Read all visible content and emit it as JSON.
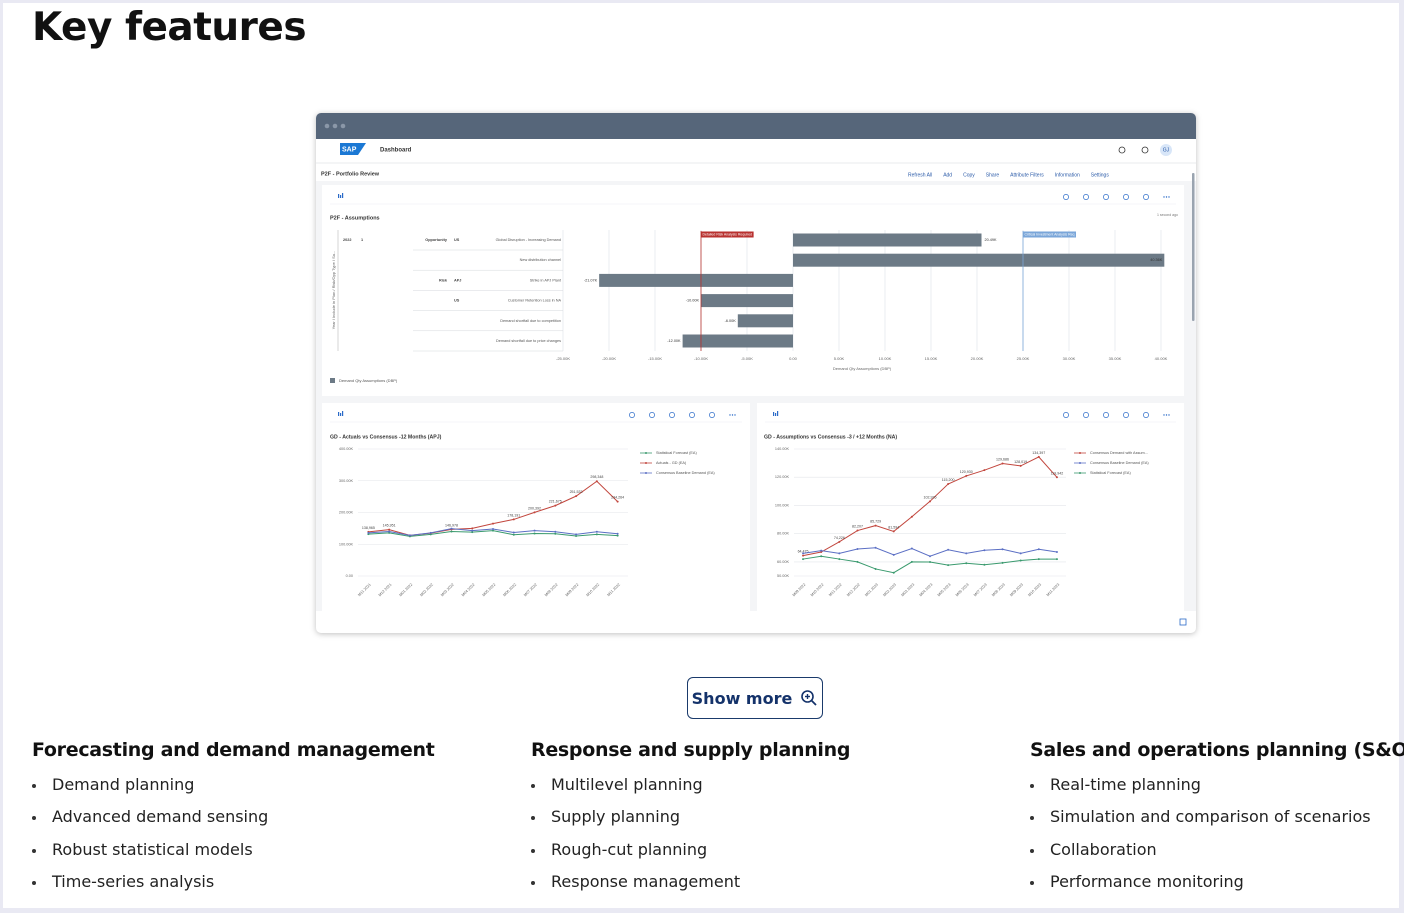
{
  "title": "Key features",
  "dashboard": {
    "app": "Dashboard",
    "logo": "SAP",
    "user": "GJ",
    "page_title": "P2F - Portfolio Review",
    "actions": [
      "Refresh All",
      "Add",
      "Copy",
      "Share",
      "Attribute Filters",
      "Information",
      "Settings"
    ],
    "updated": "1 second ago"
  },
  "chart_data": [
    {
      "type": "hbar",
      "title": "P2F - Assumptions",
      "y_axis_title": "Year / Include in Plan / Risk/Opp Type / Sa...",
      "x_axis_title": "Demand Qty Assumptions (DBP)",
      "row_headers": [
        [
          "2022",
          "1",
          "Opportunity",
          "US"
        ],
        [
          null,
          null,
          null,
          null
        ],
        [
          null,
          null,
          "Risk",
          "APJ"
        ],
        [
          null,
          null,
          null,
          "US"
        ],
        [
          null,
          null,
          null,
          null
        ],
        [
          null,
          null,
          null,
          null
        ]
      ],
      "categories": [
        "Global Disruption - Increasing Demand",
        "New distribution channel",
        "Strike in APJ Plant",
        "Customer Retention Loss in NA",
        "Demand shortfall due to competition",
        "Demand shortfall due to price changes"
      ],
      "series": [
        {
          "name": "Demand Qty Assumptions (DBP)",
          "color": "#6c7a86",
          "values": [
            20490,
            40360,
            -21070,
            -10000,
            -6000,
            -12000
          ],
          "value_labels": [
            "20.49K",
            "40.36K",
            "-21.07K",
            "-10.00K",
            "-6.00K",
            "-12.00K"
          ]
        }
      ],
      "xlim": [
        -25000,
        40000
      ],
      "xticks": [
        {
          "value": -25000,
          "label": "-25.00K"
        },
        {
          "value": -20000,
          "label": "-20.00K"
        },
        {
          "value": -15000,
          "label": "-15.00K"
        },
        {
          "value": -10000,
          "label": "-10.00K"
        },
        {
          "value": -5000,
          "label": "-5.00K"
        },
        {
          "value": 0,
          "label": "0.00"
        },
        {
          "value": 5000,
          "label": "5.00K"
        },
        {
          "value": 10000,
          "label": "10.00K"
        },
        {
          "value": 15000,
          "label": "15.00K"
        },
        {
          "value": 20000,
          "label": "20.00K"
        },
        {
          "value": 25000,
          "label": "25.00K"
        },
        {
          "value": 30000,
          "label": "30.00K"
        },
        {
          "value": 35000,
          "label": "35.00K"
        },
        {
          "value": 40000,
          "label": "40.00K"
        }
      ],
      "annotations": [
        {
          "text": "Detailed Risk Analysis Required",
          "x": -10000,
          "color": "#b8312f"
        },
        {
          "text": "Critical Investment Analysis Req",
          "x": 25000,
          "color": "#7aa6d9"
        }
      ],
      "grid": true
    },
    {
      "type": "line",
      "title": "GD - Actuals vs Consensus -12 Months (APJ)",
      "categories": [
        "M11 2021",
        "M12 2021",
        "M01 2022",
        "M02 2022",
        "M03 2022",
        "M04 2022",
        "M05 2022",
        "M06 2022",
        "M07 2022",
        "M08 2022",
        "M09 2022",
        "M10 2022",
        "M11 2022"
      ],
      "series": [
        {
          "name": "Statistical Forecast (EA)",
          "color": "#3a9a6e",
          "values": [
            132000,
            136000,
            125000,
            131000,
            140000,
            138000,
            143000,
            130000,
            134000,
            133000,
            126000,
            131000,
            127000
          ]
        },
        {
          "name": "Actuals - GD (EA)",
          "color": "#c2463d",
          "values": [
            138965,
            145951,
            128000,
            135000,
            146978,
            150000,
            165000,
            178191,
            200392,
            221675,
            251533,
            298348,
            234264
          ],
          "value_labels": [
            "138,965",
            "145,951",
            null,
            null,
            "146,978",
            null,
            null,
            "178,191",
            "200,392",
            "221,675",
            "251,533",
            "298,348",
            "234,264"
          ]
        },
        {
          "name": "Consensus Baseline Demand (EA)",
          "color": "#5b6fc4",
          "values": [
            136000,
            140000,
            128000,
            136000,
            149190,
            143000,
            148000,
            137000,
            142719,
            139413,
            131000,
            139407,
            133000
          ]
        }
      ],
      "ylim": [
        0,
        400000
      ],
      "yticks": [
        {
          "value": 0,
          "label": "0.00"
        },
        {
          "value": 100000,
          "label": "100.00K"
        },
        {
          "value": 200000,
          "label": "200.00K"
        },
        {
          "value": 300000,
          "label": "300.00K"
        },
        {
          "value": 400000,
          "label": "400.00K"
        }
      ],
      "grid": true
    },
    {
      "type": "line",
      "title": "GD - Assumptions vs Consensus -3 / +12 Months (NA)",
      "categories": [
        "M09 2022",
        "M10 2022",
        "M11 2022",
        "M12 2022",
        "M01 2023",
        "M02 2023",
        "M03 2023",
        "M04 2023",
        "M05 2023",
        "M06 2023",
        "M07 2023",
        "M08 2023",
        "M09 2023",
        "M10 2023",
        "M11 2023"
      ],
      "series": [
        {
          "name": "Consensus Demand with Assum...",
          "color": "#c2463d",
          "values": [
            64475,
            67000,
            74226,
            82207,
            85729,
            81594,
            92000,
            102926,
            115200,
            120930,
            125000,
            129686,
            128019,
            134397,
            119942
          ],
          "value_labels": [
            "64,475",
            null,
            "74,226",
            "82,207",
            "85,729",
            "81,594",
            null,
            "102,926",
            "115,200",
            "120,930",
            null,
            "129,686",
            "128,019",
            "134,397",
            "119,942"
          ]
        },
        {
          "name": "Consensus Baseline Demand (EA)",
          "color": "#5b6fc4",
          "values": [
            66000,
            68000,
            66000,
            69135,
            70000,
            65000,
            69495,
            64000,
            68608,
            66000,
            68217,
            68984,
            66000,
            68923,
            67000
          ]
        },
        {
          "name": "Statistical Forecast (EA)",
          "color": "#3a9a6e",
          "values": [
            62000,
            64000,
            62000,
            60000,
            55000,
            52322,
            60000,
            59936,
            57675,
            59000,
            58000,
            59294,
            61000,
            62000,
            62000
          ]
        }
      ],
      "ylim": [
        50000,
        140000
      ],
      "yticks": [
        {
          "value": 50000,
          "label": "50.00K"
        },
        {
          "value": 60000,
          "label": "60.00K"
        },
        {
          "value": 80000,
          "label": "80.00K"
        },
        {
          "value": 100000,
          "label": "100.00K"
        },
        {
          "value": 120000,
          "label": "120.00K"
        },
        {
          "value": 140000,
          "label": "140.00K"
        }
      ],
      "grid": true
    }
  ],
  "show_more": "Show more",
  "columns": [
    {
      "title": "Forecasting and demand management",
      "items": [
        "Demand planning",
        "Advanced demand sensing",
        "Robust statistical models",
        "Time-series analysis"
      ]
    },
    {
      "title": "Response and supply planning",
      "items": [
        "Multilevel planning",
        "Supply planning",
        "Rough-cut planning",
        "Response management"
      ]
    },
    {
      "title": "Sales and operations planning (S&OP)",
      "items": [
        "Real-time planning",
        "Simulation and comparison of scenarios",
        "Collaboration",
        "Performance monitoring"
      ]
    }
  ]
}
